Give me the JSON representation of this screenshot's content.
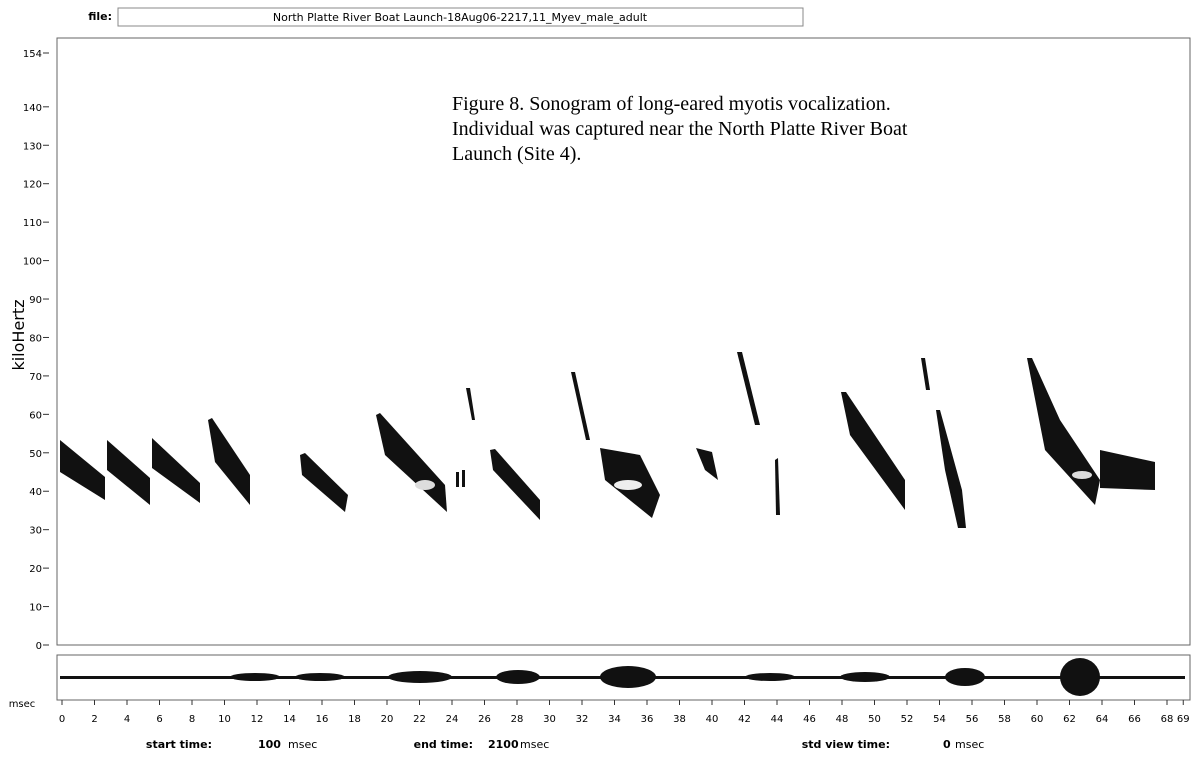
{
  "header": {
    "file_label": "file:",
    "file_name": "North Platte River Boat Launch-18Aug06-2217,11_Myev_male_adult"
  },
  "y_axis": {
    "label": "kiloHertz",
    "ticks": [
      154,
      140,
      130,
      120,
      110,
      100,
      90,
      80,
      70,
      60,
      50,
      40,
      30,
      20,
      10,
      0
    ]
  },
  "caption": {
    "lines": [
      "Figure 8.  Sonogram of long-eared myotis vocalization.",
      "Individual was captured near the North Platte River Boat",
      "Launch (Site 4)."
    ]
  },
  "x_axis": {
    "unit": "msec",
    "ticks": [
      0,
      2,
      4,
      6,
      8,
      10,
      12,
      14,
      16,
      18,
      20,
      22,
      24,
      26,
      28,
      30,
      32,
      34,
      36,
      38,
      40,
      42,
      44,
      46,
      48,
      50,
      52,
      54,
      56,
      58,
      60,
      62,
      64,
      66,
      68,
      69
    ]
  },
  "footer": {
    "start_label": "start time:",
    "start_value": "100",
    "start_unit": "msec",
    "end_label": "end time:",
    "end_value": "2100",
    "end_unit": "msec",
    "std_label": "std view time:",
    "std_value": "0",
    "std_unit": "msec"
  }
}
